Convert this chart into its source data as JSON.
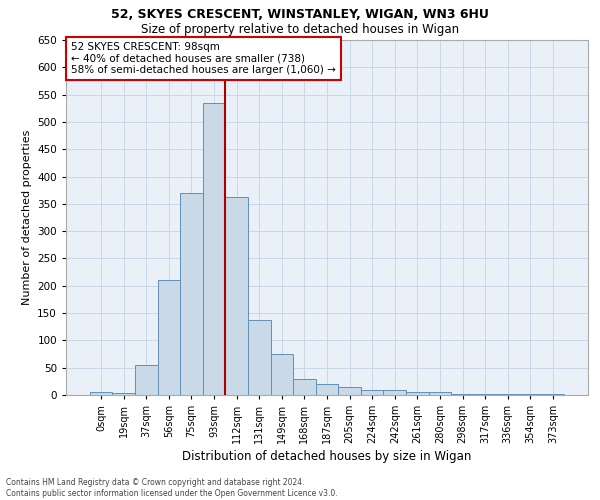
{
  "title1": "52, SKYES CRESCENT, WINSTANLEY, WIGAN, WN3 6HU",
  "title2": "Size of property relative to detached houses in Wigan",
  "xlabel": "Distribution of detached houses by size in Wigan",
  "ylabel": "Number of detached properties",
  "bar_labels": [
    "0sqm",
    "19sqm",
    "37sqm",
    "56sqm",
    "75sqm",
    "93sqm",
    "112sqm",
    "131sqm",
    "149sqm",
    "168sqm",
    "187sqm",
    "205sqm",
    "224sqm",
    "242sqm",
    "261sqm",
    "280sqm",
    "298sqm",
    "317sqm",
    "336sqm",
    "354sqm",
    "373sqm"
  ],
  "bar_values": [
    5,
    3,
    55,
    210,
    370,
    535,
    363,
    138,
    75,
    30,
    20,
    14,
    9,
    9,
    6,
    5,
    2,
    2,
    1,
    1,
    2
  ],
  "bar_color": "#c9d9e8",
  "bar_edge_color": "#6090b8",
  "annotation_text": "52 SKYES CRESCENT: 98sqm\n← 40% of detached houses are smaller (738)\n58% of semi-detached houses are larger (1,060) →",
  "annotation_box_color": "#ffffff",
  "annotation_box_edge": "#cc0000",
  "vline_color": "#aa0000",
  "grid_color": "#c8d8e8",
  "bg_color": "#eaf0f7",
  "ylim": [
    0,
    650
  ],
  "yticks": [
    0,
    50,
    100,
    150,
    200,
    250,
    300,
    350,
    400,
    450,
    500,
    550,
    600,
    650
  ],
  "footer": "Contains HM Land Registry data © Crown copyright and database right 2024.\nContains public sector information licensed under the Open Government Licence v3.0."
}
